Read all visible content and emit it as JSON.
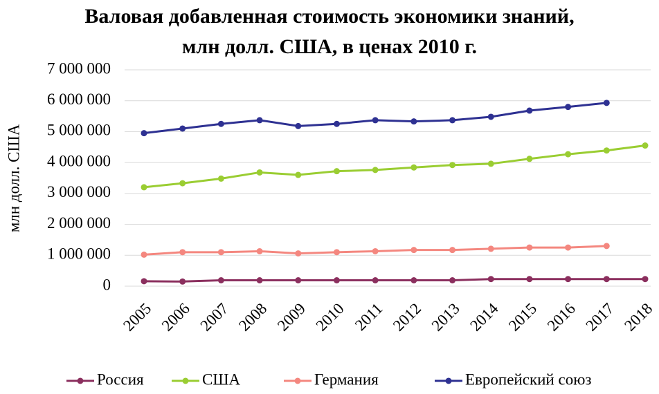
{
  "chart_data": {
    "type": "line",
    "title": "Валовая добавленная стоимость экономики знаний, млн долл. США, в ценах 2010 г.",
    "y_label": "млн долл. США",
    "categories": [
      "2005",
      "2006",
      "2007",
      "2008",
      "2009",
      "2010",
      "2011",
      "2012",
      "2013",
      "2014",
      "2015",
      "2016",
      "2017",
      "2018"
    ],
    "series": [
      {
        "name": "Россия",
        "color": "#8b2f5e",
        "values": [
          160000,
          150000,
          190000,
          190000,
          190000,
          190000,
          190000,
          190000,
          190000,
          230000,
          230000,
          230000,
          230000,
          230000
        ]
      },
      {
        "name": "США",
        "color": "#9acd32",
        "values": [
          3200000,
          3330000,
          3480000,
          3680000,
          3600000,
          3720000,
          3760000,
          3840000,
          3920000,
          3960000,
          4120000,
          4270000,
          4390000,
          4550000
        ]
      },
      {
        "name": "Германия",
        "color": "#f4877f",
        "values": [
          1020000,
          1100000,
          1100000,
          1130000,
          1060000,
          1100000,
          1130000,
          1170000,
          1170000,
          1210000,
          1250000,
          1250000,
          1300000,
          null
        ]
      },
      {
        "name": "Европейский союз",
        "color": "#2e3192",
        "values": [
          4950000,
          5100000,
          5250000,
          5370000,
          5180000,
          5250000,
          5370000,
          5330000,
          5370000,
          5480000,
          5680000,
          5800000,
          5930000,
          null
        ]
      }
    ],
    "ylim": [
      0,
      7000000
    ],
    "yticks": [
      0,
      {
        "value": 1000000,
        "label": "1 000 000"
      },
      {
        "value": 2000000,
        "label": "2 000 000"
      },
      {
        "value": 3000000,
        "label": "3 000 000"
      },
      {
        "value": 4000000,
        "label": "4 000 000"
      },
      {
        "value": 5000000,
        "label": "5 000 000"
      },
      {
        "value": 6000000,
        "label": "6 000 000"
      },
      {
        "value": 7000000,
        "label": "7 000 000"
      }
    ],
    "grid": true,
    "legend": "bottom"
  }
}
